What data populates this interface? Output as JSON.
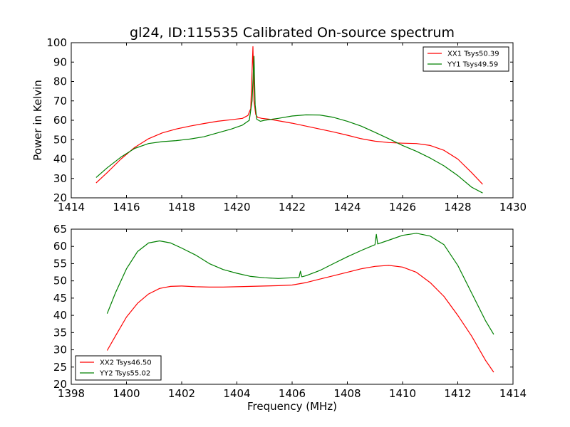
{
  "chart_data": [
    {
      "type": "line",
      "title": "gl24, ID:115535 Calibrated On-source spectrum",
      "xlabel": "",
      "ylabel": "Power in Kelvin",
      "xlim": [
        1414,
        1430
      ],
      "ylim": [
        20,
        100
      ],
      "xticks": [
        1414,
        1416,
        1418,
        1420,
        1422,
        1424,
        1426,
        1428,
        1430
      ],
      "yticks": [
        20,
        30,
        40,
        50,
        60,
        70,
        80,
        90,
        100
      ],
      "legend": "top-right",
      "series": [
        {
          "name": "XX1 Tsys50.39",
          "color": "#ff0000",
          "x": [
            1414.9,
            1415.3,
            1415.8,
            1416.3,
            1416.8,
            1417.3,
            1417.8,
            1418.3,
            1418.8,
            1419.3,
            1419.8,
            1420.2,
            1420.4,
            1420.5,
            1420.58,
            1420.62,
            1420.68,
            1420.75,
            1420.9,
            1421.2,
            1421.6,
            1422.0,
            1422.5,
            1423.0,
            1423.5,
            1424.0,
            1424.5,
            1425.0,
            1425.5,
            1426.0,
            1426.5,
            1427.0,
            1427.5,
            1428.0,
            1428.5,
            1428.9
          ],
          "y": [
            27.7,
            33.0,
            40.0,
            46.0,
            50.5,
            53.5,
            55.5,
            57.0,
            58.3,
            59.5,
            60.3,
            61.0,
            62.5,
            66.0,
            98.0,
            70.0,
            63.0,
            61.5,
            61.0,
            60.5,
            59.5,
            58.5,
            57.0,
            55.5,
            54.0,
            52.3,
            50.5,
            49.2,
            48.5,
            48.2,
            48.0,
            47.0,
            44.5,
            40.0,
            33.0,
            27.0
          ]
        },
        {
          "name": "YY1 Tsys49.59",
          "color": "#008000",
          "x": [
            1414.9,
            1415.3,
            1415.8,
            1416.3,
            1416.8,
            1417.3,
            1417.8,
            1418.3,
            1418.8,
            1419.3,
            1419.8,
            1420.2,
            1420.45,
            1420.55,
            1420.62,
            1420.66,
            1420.72,
            1420.85,
            1421.0,
            1421.5,
            1422.0,
            1422.5,
            1423.0,
            1423.5,
            1424.0,
            1424.5,
            1425.0,
            1425.5,
            1426.0,
            1426.5,
            1427.0,
            1427.5,
            1428.0,
            1428.5,
            1428.9
          ],
          "y": [
            30.5,
            35.5,
            41.0,
            45.5,
            48.0,
            49.0,
            49.5,
            50.3,
            51.5,
            53.5,
            55.5,
            57.5,
            60.0,
            70.0,
            93.0,
            68.0,
            60.5,
            59.5,
            60.0,
            61.0,
            62.2,
            62.8,
            62.7,
            61.5,
            59.5,
            57.0,
            53.8,
            50.5,
            47.0,
            44.0,
            40.5,
            36.5,
            31.5,
            25.5,
            22.5
          ]
        }
      ]
    },
    {
      "type": "line",
      "title": "",
      "xlabel": "Frequency (MHz)",
      "ylabel": "",
      "xlim": [
        1398,
        1414
      ],
      "ylim": [
        20,
        65
      ],
      "xticks": [
        1398,
        1400,
        1402,
        1404,
        1406,
        1408,
        1410,
        1412,
        1414
      ],
      "yticks": [
        20,
        25,
        30,
        35,
        40,
        45,
        50,
        55,
        60,
        65
      ],
      "legend": "bottom-left",
      "series": [
        {
          "name": "XX2 Tsys46.50",
          "color": "#ff0000",
          "x": [
            1399.3,
            1399.6,
            1400.0,
            1400.4,
            1400.8,
            1401.2,
            1401.6,
            1402.0,
            1402.5,
            1403.0,
            1403.5,
            1404.0,
            1404.5,
            1405.0,
            1405.5,
            1406.0,
            1406.5,
            1407.0,
            1407.5,
            1408.0,
            1408.5,
            1409.0,
            1409.5,
            1410.0,
            1410.5,
            1411.0,
            1411.5,
            1412.0,
            1412.5,
            1413.0,
            1413.3
          ],
          "y": [
            29.8,
            34.0,
            39.5,
            43.5,
            46.2,
            47.8,
            48.4,
            48.5,
            48.3,
            48.2,
            48.2,
            48.3,
            48.4,
            48.5,
            48.6,
            48.8,
            49.5,
            50.5,
            51.5,
            52.5,
            53.5,
            54.2,
            54.5,
            54.0,
            52.5,
            49.5,
            45.5,
            40.0,
            34.0,
            27.0,
            23.5
          ]
        },
        {
          "name": "YY2 Tsys55.02",
          "color": "#008000",
          "x": [
            1399.3,
            1399.6,
            1400.0,
            1400.4,
            1400.8,
            1401.2,
            1401.6,
            1402.0,
            1402.5,
            1403.0,
            1403.5,
            1404.0,
            1404.5,
            1405.0,
            1405.5,
            1406.0,
            1406.25,
            1406.3,
            1406.35,
            1406.5,
            1407.0,
            1407.5,
            1408.0,
            1408.5,
            1409.0,
            1409.05,
            1409.1,
            1409.5,
            1410.0,
            1410.5,
            1411.0,
            1411.5,
            1412.0,
            1412.5,
            1413.0,
            1413.3
          ],
          "y": [
            40.5,
            46.5,
            53.5,
            58.5,
            61.0,
            61.6,
            61.0,
            59.5,
            57.5,
            55.0,
            53.3,
            52.2,
            51.3,
            50.9,
            50.7,
            50.9,
            51.0,
            52.8,
            51.2,
            51.5,
            53.0,
            55.0,
            57.0,
            58.8,
            60.5,
            63.5,
            60.7,
            61.8,
            63.2,
            63.8,
            63.0,
            60.5,
            54.5,
            46.5,
            38.5,
            34.5
          ]
        }
      ]
    }
  ]
}
